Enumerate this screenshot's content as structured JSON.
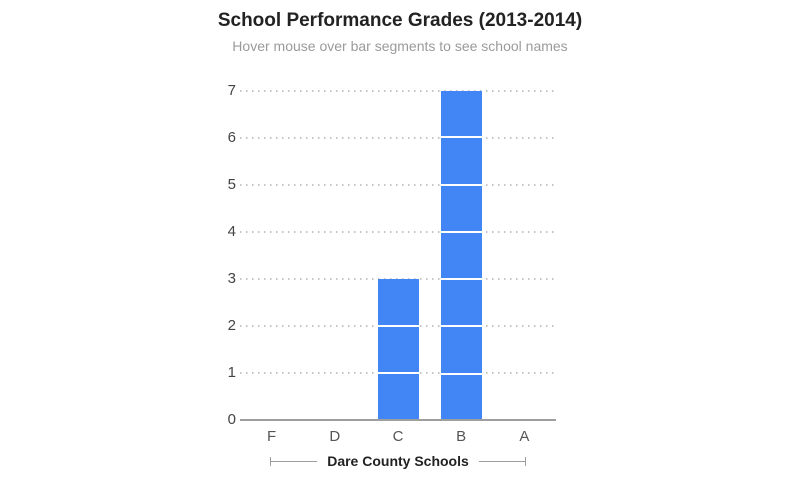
{
  "chart_data": {
    "type": "bar",
    "title": "School Performance Grades (2013-2014)",
    "subtitle": "Hover mouse over bar segments to see school names",
    "categories": [
      "F",
      "D",
      "C",
      "B",
      "A"
    ],
    "values": [
      0,
      0,
      3,
      7,
      0
    ],
    "xlabel": "Dare County Schools",
    "ylabel": "",
    "ylim": [
      0,
      7
    ],
    "ytick_interval": 1,
    "yticks": [
      0,
      1,
      2,
      3,
      4,
      5,
      6,
      7
    ],
    "grid": "dotted horizontal gridlines, solid baseline",
    "legend": "none",
    "stacked_unit_segments": true,
    "bar_color": "#4285f4",
    "segment_divider_color": "#ffffff",
    "baseline_color": "#9e9e9e",
    "title_color": "#222222",
    "subtitle_color": "#9a9a9a"
  }
}
